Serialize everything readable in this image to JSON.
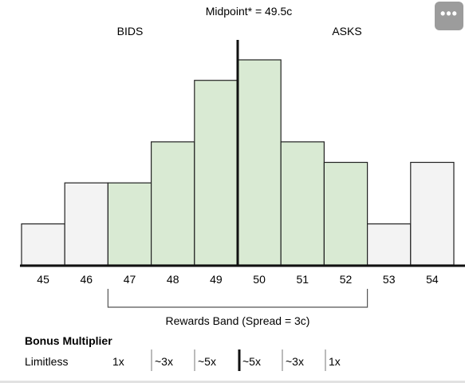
{
  "more_button_icon": "more-horizontal-icon",
  "chart_data": {
    "type": "bar",
    "title": "Midpoint* = 49.5c",
    "categories": [
      "45",
      "46",
      "47",
      "48",
      "49",
      "50",
      "51",
      "52",
      "53",
      "54"
    ],
    "values": [
      2,
      4,
      4,
      6,
      9,
      10,
      6,
      5,
      2,
      5
    ],
    "ylim": [
      0,
      10
    ],
    "midpoint": 49.5,
    "side_labels": {
      "bids": "BIDS",
      "asks": "ASKS"
    },
    "band": {
      "from": "47",
      "to": "52",
      "label": "Rewards Band (Spread = 3c)"
    },
    "colors": {
      "in_band": "#d9ead3",
      "out_band": "#f3f3f3",
      "stroke": "#222222"
    },
    "multiplier": {
      "title": "Bonus Multiplier",
      "items": [
        "Limitless",
        "1x",
        "~3x",
        "~5x",
        "~5x",
        "~3x",
        "1x"
      ]
    }
  }
}
